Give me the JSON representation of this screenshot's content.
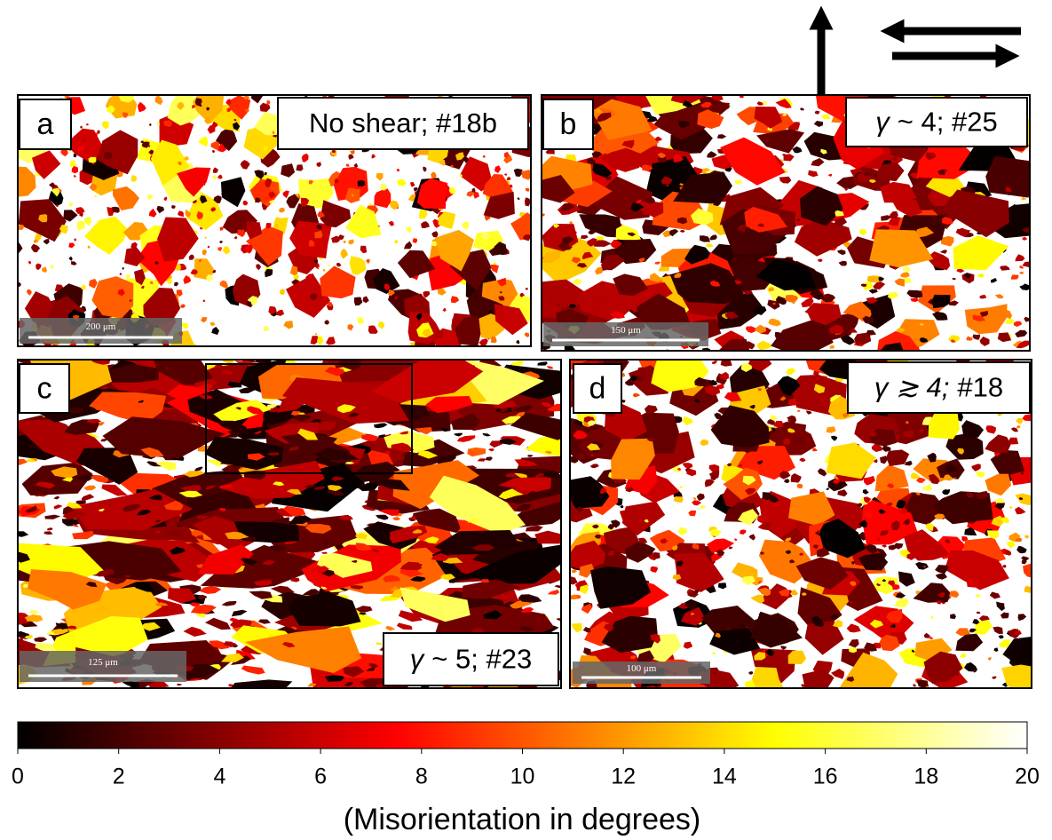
{
  "panels": [
    {
      "letter": "a",
      "caption_symbol": "",
      "caption": "No shear; #18b",
      "scale": "200 μm"
    },
    {
      "letter": "b",
      "caption_symbol": "γ",
      "caption": "~ 4; #25",
      "scale": "150 μm"
    },
    {
      "letter": "c",
      "caption_symbol": "γ",
      "caption": "~ 5; #23",
      "scale": "125 μm"
    },
    {
      "letter": "d",
      "caption_symbol": "γ ≳ 4;",
      "caption": "#18",
      "scale": "100 μm"
    }
  ],
  "colorbar": {
    "lim": [
      0,
      20
    ],
    "ticks": [
      0,
      2,
      4,
      6,
      8,
      10,
      12,
      14,
      16,
      18,
      20
    ],
    "label": "(Misorientation in degrees)"
  }
}
